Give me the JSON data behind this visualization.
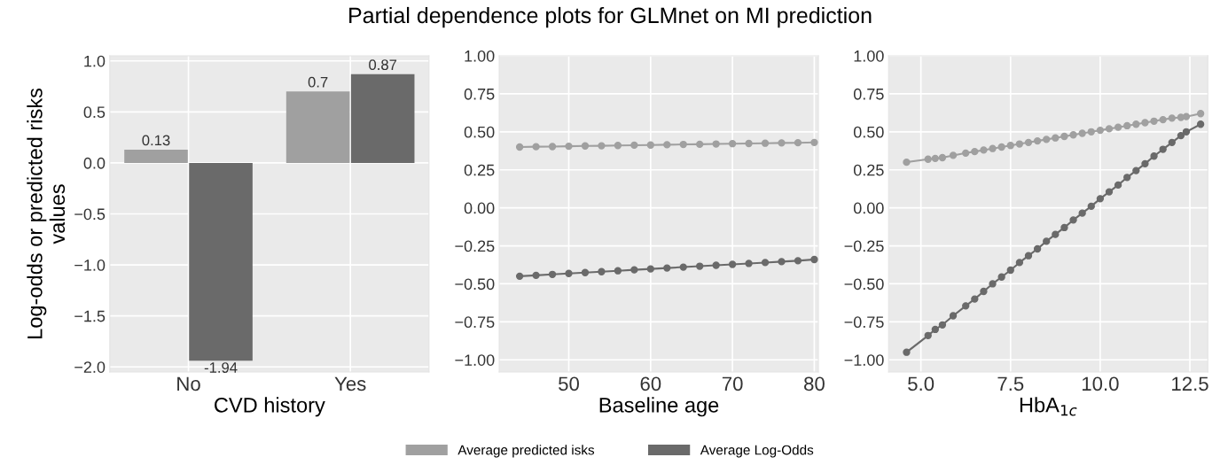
{
  "chart_data": [
    {
      "type": "bar",
      "categories": [
        "No",
        "Yes"
      ],
      "xlabel": "CVD history",
      "ylabel": "Log-odds or predicted risks\nvalues",
      "series": [
        {
          "color": "#a0a0a0",
          "values": [
            0.13,
            0.7
          ]
        },
        {
          "color": "#6a6a6a",
          "values": [
            -1.94,
            0.87
          ]
        }
      ],
      "data_labels": true,
      "ylim": [
        -2.05,
        1.05
      ],
      "yticks": [
        {
          "value": -2,
          "label": "−2.0"
        },
        {
          "value": -1.5,
          "label": "−1.5"
        },
        {
          "value": -1,
          "label": "−1.0"
        },
        {
          "value": -0.5,
          "label": "−0.5"
        },
        {
          "value": 0,
          "label": "0.0"
        },
        {
          "value": 0.5,
          "label": "0.5"
        },
        {
          "value": 1,
          "label": "1.0"
        }
      ],
      "grid": true,
      "legend": false
    },
    {
      "type": "line",
      "title": "Partial dependence plots for GLMnet on MI prediction",
      "xlabel": "Baseline age",
      "x": [
        44,
        46,
        48,
        50,
        52,
        54,
        56,
        58,
        60,
        62,
        64,
        66,
        68,
        70,
        72,
        74,
        76,
        78,
        80
      ],
      "series": [
        {
          "name": "Average predicted isks",
          "color": "#a0a0a0",
          "values": [
            0.4,
            0.402,
            0.403,
            0.405,
            0.407,
            0.408,
            0.41,
            0.412,
            0.413,
            0.415,
            0.417,
            0.418,
            0.42,
            0.422,
            0.423,
            0.425,
            0.427,
            0.428,
            0.43
          ]
        },
        {
          "name": "Average Log-Odds",
          "color": "#6a6a6a",
          "values": [
            -0.45,
            -0.444,
            -0.438,
            -0.432,
            -0.426,
            -0.42,
            -0.414,
            -0.408,
            -0.402,
            -0.396,
            -0.39,
            -0.384,
            -0.378,
            -0.372,
            -0.366,
            -0.36,
            -0.354,
            -0.348,
            -0.34
          ]
        }
      ],
      "marker": "circle",
      "xlim": [
        41.5,
        80.5
      ],
      "xticks": [
        50,
        60,
        70,
        80
      ],
      "ylim": [
        -1.08,
        1.0
      ],
      "yticks": [
        {
          "value": -1,
          "label": "−1.00"
        },
        {
          "value": -0.75,
          "label": "−0.75"
        },
        {
          "value": -0.5,
          "label": "−0.50"
        },
        {
          "value": -0.25,
          "label": "−0.25"
        },
        {
          "value": 0,
          "label": "0.00"
        },
        {
          "value": 0.25,
          "label": "0.25"
        },
        {
          "value": 0.5,
          "label": "0.50"
        },
        {
          "value": 0.75,
          "label": "0.75"
        },
        {
          "value": 1,
          "label": "1.00"
        }
      ],
      "grid": true,
      "legend": "bottom"
    },
    {
      "type": "line",
      "xlabel": "HbA$_{1c}$",
      "x": [
        4.6,
        5.2,
        5.4,
        5.6,
        5.9,
        6.25,
        6.5,
        6.75,
        7.0,
        7.25,
        7.5,
        7.75,
        8.0,
        8.25,
        8.5,
        8.75,
        9.0,
        9.25,
        9.5,
        9.75,
        10.0,
        10.25,
        10.5,
        10.75,
        11.0,
        11.25,
        11.5,
        11.75,
        12.0,
        12.25,
        12.4,
        12.8
      ],
      "series": [
        {
          "color": "#a0a0a0",
          "values": [
            0.3,
            0.32,
            0.325,
            0.33,
            0.345,
            0.36,
            0.37,
            0.38,
            0.39,
            0.4,
            0.41,
            0.42,
            0.43,
            0.44,
            0.45,
            0.46,
            0.47,
            0.48,
            0.49,
            0.5,
            0.51,
            0.52,
            0.53,
            0.54,
            0.55,
            0.56,
            0.57,
            0.58,
            0.59,
            0.595,
            0.6,
            0.62
          ]
        },
        {
          "color": "#6a6a6a",
          "values": [
            -0.95,
            -0.84,
            -0.8,
            -0.77,
            -0.71,
            -0.645,
            -0.6,
            -0.55,
            -0.5,
            -0.455,
            -0.41,
            -0.36,
            -0.315,
            -0.27,
            -0.22,
            -0.175,
            -0.13,
            -0.08,
            -0.035,
            0.01,
            0.06,
            0.105,
            0.15,
            0.2,
            0.245,
            0.29,
            0.34,
            0.385,
            0.43,
            0.475,
            0.5,
            0.55
          ]
        }
      ],
      "marker": "circle",
      "xlim": [
        4.1,
        13.0
      ],
      "xticks": [
        {
          "value": 5,
          "label": "5.0"
        },
        {
          "value": 7.5,
          "label": "7.5"
        },
        {
          "value": 10,
          "label": "10.0"
        },
        {
          "value": 12.5,
          "label": "12.5"
        }
      ],
      "ylim": [
        -1.08,
        1.0
      ],
      "yticks": [
        {
          "value": -1,
          "label": "−1.00"
        },
        {
          "value": -0.75,
          "label": "−0.75"
        },
        {
          "value": -0.5,
          "label": "−0.50"
        },
        {
          "value": -0.25,
          "label": "−0.25"
        },
        {
          "value": 0,
          "label": "0.00"
        },
        {
          "value": 0.25,
          "label": "0.25"
        },
        {
          "value": 0.5,
          "label": "0.50"
        },
        {
          "value": 0.75,
          "label": "0.75"
        },
        {
          "value": 1,
          "label": "1.00"
        }
      ],
      "grid": true,
      "legend": false
    }
  ]
}
